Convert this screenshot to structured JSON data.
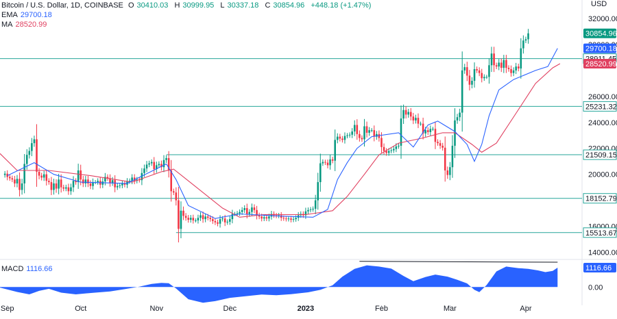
{
  "header": {
    "symbol": "Bitcoin / U.S. Dollar, 1D, COINBASE",
    "ohlc": [
      {
        "key": "O",
        "value": "30410.03"
      },
      {
        "key": "H",
        "value": "30999.95"
      },
      {
        "key": "L",
        "value": "30337.18"
      },
      {
        "key": "C",
        "value": "30854.96"
      }
    ],
    "change": "+448.18 (+1.47%)",
    "ema_label": "EMA",
    "ema_value": "29700.18",
    "ma_label": "MA",
    "ma_value": "28520.99",
    "macd_label": "MACD",
    "macd_value": "1116.66"
  },
  "colors": {
    "up": "#089981",
    "down": "#f23645",
    "ema": "#2962ff",
    "ma": "#e04060",
    "level": "#26a69a",
    "macd_fill": "#2962ff",
    "grid": "#f0f3fa",
    "axis_text": "#131722"
  },
  "chart_data": [
    {
      "type": "candlestick",
      "title": "Bitcoin / U.S. Dollar, 1D, COINBASE",
      "yaxis_unit": "USD",
      "ylim": [
        13500,
        33000
      ],
      "yticks": [
        {
          "value": 32000,
          "label": "32000.00"
        },
        {
          "value": 30000,
          "label": "30000.00"
        },
        {
          "value": 26000,
          "label": "26000.00"
        },
        {
          "value": 24000,
          "label": "24000.00"
        },
        {
          "value": 22000,
          "label": "22000.00"
        },
        {
          "value": 20000,
          "label": "20000.00"
        },
        {
          "value": 16000,
          "label": "16000.00"
        },
        {
          "value": 14000,
          "label": "14000.00"
        }
      ],
      "xticks": [
        {
          "date": "2022-09-01",
          "label": "Sep"
        },
        {
          "date": "2022-10-01",
          "label": "Oct"
        },
        {
          "date": "2022-11-01",
          "label": "Nov"
        },
        {
          "date": "2022-12-01",
          "label": "Dec"
        },
        {
          "date": "2023-01-01",
          "label": "2023"
        },
        {
          "date": "2023-02-01",
          "label": "Feb"
        },
        {
          "date": "2023-03-01",
          "label": "Mar"
        },
        {
          "date": "2023-04-01",
          "label": "Apr"
        }
      ],
      "xrange": [
        "2022-08-29",
        "2023-04-24"
      ],
      "series": [
        {
          "name": "BTCUSD",
          "kind": "candles",
          "first_date": "2022-08-31",
          "interval": "1D",
          "close": [
            20050,
            19800,
            19700,
            19600,
            19300,
            19650,
            18800,
            19300,
            20800,
            21500,
            21800,
            22400,
            22700,
            20200,
            19900,
            19750,
            20000,
            19500,
            19400,
            18800,
            19300,
            18900,
            19600,
            19000,
            18900,
            19000,
            18700,
            19000,
            19500,
            19400,
            20300,
            19600,
            19300,
            19600,
            19300,
            19100,
            19400,
            19400,
            19500,
            19200,
            19450,
            19800,
            19700,
            19350,
            19550,
            19000,
            19100,
            19150,
            19300,
            19200,
            19450,
            19500,
            19750,
            19500,
            19600,
            19550,
            20100,
            20450,
            20750,
            20850,
            20950,
            20400,
            20700,
            20800,
            20550,
            21100,
            21250,
            20300,
            18700,
            18600,
            18000,
            15800,
            17200,
            16800,
            16650,
            16500,
            16650,
            16450,
            16450,
            16650,
            16850,
            16550,
            16750,
            16650,
            16550,
            16400,
            16300,
            16200,
            16550,
            16600,
            16300,
            16350,
            16550,
            16950,
            16950,
            17000,
            17100,
            17250,
            17400,
            16950,
            17100,
            17450,
            17250,
            16850,
            16750,
            16600,
            16700,
            16600,
            16750,
            16950,
            16850,
            16800,
            16850,
            16650,
            16600,
            16550,
            16600,
            16500,
            16550,
            16650,
            16850,
            16950,
            16850,
            17150,
            17250,
            17300,
            17350,
            18000,
            19400,
            20850,
            20950,
            20900,
            20700,
            21150,
            21050,
            22650,
            22900,
            22750,
            22650,
            22950,
            23000,
            23050,
            23300,
            23800,
            23100,
            22800,
            22700,
            23700,
            23200,
            23400,
            23400,
            22900,
            23100,
            22800,
            22100,
            21800,
            21650,
            21800,
            21850,
            21950,
            22150,
            22200,
            24300,
            24950,
            24600,
            24800,
            24450,
            24150,
            24350,
            23900,
            23900,
            23150,
            23400,
            23250,
            23500,
            23500,
            22500,
            22400,
            22200,
            22050,
            20300,
            19950,
            20550,
            22200,
            24150,
            24400,
            24750,
            28000,
            28250,
            27600,
            26900,
            27200,
            28100,
            28000,
            27800,
            27400,
            27500,
            27500,
            28400,
            29300,
            28400,
            28300,
            28600,
            28200,
            28800,
            28200,
            28100,
            27800,
            28000,
            28300,
            28150,
            29700,
            30300,
            30400,
            30855
          ]
        },
        {
          "name": "EMA",
          "value_label": "29700.18",
          "points": [
            {
              "date": "2022-09-01",
              "value": 19900
            },
            {
              "date": "2022-09-12",
              "value": 20900
            },
            {
              "date": "2022-09-20",
              "value": 20000
            },
            {
              "date": "2022-10-01",
              "value": 19400
            },
            {
              "date": "2022-10-20",
              "value": 19300
            },
            {
              "date": "2022-11-05",
              "value": 20800
            },
            {
              "date": "2022-11-09",
              "value": 19600
            },
            {
              "date": "2022-11-14",
              "value": 17600
            },
            {
              "date": "2022-11-25",
              "value": 16600
            },
            {
              "date": "2022-12-05",
              "value": 16950
            },
            {
              "date": "2022-12-20",
              "value": 16800
            },
            {
              "date": "2023-01-04",
              "value": 16700
            },
            {
              "date": "2023-01-10",
              "value": 17300
            },
            {
              "date": "2023-01-14",
              "value": 19600
            },
            {
              "date": "2023-01-18",
              "value": 20900
            },
            {
              "date": "2023-01-22",
              "value": 22000
            },
            {
              "date": "2023-01-28",
              "value": 22900
            },
            {
              "date": "2023-02-08",
              "value": 23200
            },
            {
              "date": "2023-02-14",
              "value": 22100
            },
            {
              "date": "2023-02-20",
              "value": 23800
            },
            {
              "date": "2023-02-24",
              "value": 24100
            },
            {
              "date": "2023-03-03",
              "value": 23300
            },
            {
              "date": "2023-03-08",
              "value": 22300
            },
            {
              "date": "2023-03-11",
              "value": 21000
            },
            {
              "date": "2023-03-14",
              "value": 22300
            },
            {
              "date": "2023-03-17",
              "value": 24500
            },
            {
              "date": "2023-03-21",
              "value": 26500
            },
            {
              "date": "2023-03-27",
              "value": 27300
            },
            {
              "date": "2023-04-05",
              "value": 28000
            },
            {
              "date": "2023-04-10",
              "value": 28300
            },
            {
              "date": "2023-04-14",
              "value": 29700
            }
          ]
        },
        {
          "name": "MA",
          "value_label": "28520.99",
          "points": [
            {
              "date": "2022-08-29",
              "value": 21600
            },
            {
              "date": "2022-09-05",
              "value": 20300
            },
            {
              "date": "2022-09-18",
              "value": 20300
            },
            {
              "date": "2022-10-05",
              "value": 19900
            },
            {
              "date": "2022-10-22",
              "value": 19400
            },
            {
              "date": "2022-11-03",
              "value": 20200
            },
            {
              "date": "2022-11-08",
              "value": 20400
            },
            {
              "date": "2022-11-16",
              "value": 19200
            },
            {
              "date": "2022-11-28",
              "value": 17400
            },
            {
              "date": "2022-12-05",
              "value": 16700
            },
            {
              "date": "2022-12-15",
              "value": 16900
            },
            {
              "date": "2023-01-01",
              "value": 16900
            },
            {
              "date": "2023-01-12",
              "value": 17200
            },
            {
              "date": "2023-01-18",
              "value": 18300
            },
            {
              "date": "2023-01-25",
              "value": 20000
            },
            {
              "date": "2023-01-31",
              "value": 21500
            },
            {
              "date": "2023-02-08",
              "value": 22400
            },
            {
              "date": "2023-02-18",
              "value": 22800
            },
            {
              "date": "2023-02-26",
              "value": 23200
            },
            {
              "date": "2023-03-03",
              "value": 23200
            },
            {
              "date": "2023-03-10",
              "value": 22300
            },
            {
              "date": "2023-03-14",
              "value": 21700
            },
            {
              "date": "2023-03-20",
              "value": 22400
            },
            {
              "date": "2023-03-28",
              "value": 24700
            },
            {
              "date": "2023-04-05",
              "value": 27000
            },
            {
              "date": "2023-04-12",
              "value": 28200
            },
            {
              "date": "2023-04-15",
              "value": 28520
            }
          ]
        }
      ],
      "levels": [
        {
          "value": 28911.45,
          "label": "28911.45",
          "from": "2022-08-29"
        },
        {
          "value": 25231.32,
          "label": "25231.32",
          "from": "2022-08-29"
        },
        {
          "value": 21509.15,
          "label": "21509.15",
          "from": "2022-11-05"
        },
        {
          "value": 18152.79,
          "label": "18152.79",
          "from": "2022-08-29"
        },
        {
          "value": 15513.67,
          "label": "15513.67",
          "from": "2022-11-09"
        }
      ],
      "price_label": {
        "value": 30854.96,
        "label": "30854.96"
      }
    },
    {
      "type": "area",
      "title": "MACD",
      "ylim": [
        -1050,
        1550
      ],
      "yticks": [
        {
          "value": 1116.66,
          "label": "1116.66"
        },
        {
          "value": 0,
          "label": "0.00"
        }
      ],
      "series": [
        {
          "name": "MACD",
          "value_label": "1116.66",
          "points": [
            {
              "date": "2022-08-29",
              "value": -30
            },
            {
              "date": "2022-09-05",
              "value": -280
            },
            {
              "date": "2022-09-10",
              "value": -420
            },
            {
              "date": "2022-09-14",
              "value": -220
            },
            {
              "date": "2022-09-18",
              "value": -100
            },
            {
              "date": "2022-09-23",
              "value": -320
            },
            {
              "date": "2022-09-29",
              "value": -420
            },
            {
              "date": "2022-10-06",
              "value": -330
            },
            {
              "date": "2022-10-13",
              "value": -250
            },
            {
              "date": "2022-10-19",
              "value": -120
            },
            {
              "date": "2022-10-25",
              "value": 20
            },
            {
              "date": "2022-10-30",
              "value": 180
            },
            {
              "date": "2022-11-03",
              "value": 240
            },
            {
              "date": "2022-11-06",
              "value": 220
            },
            {
              "date": "2022-11-09",
              "value": -80
            },
            {
              "date": "2022-11-14",
              "value": -700
            },
            {
              "date": "2022-11-20",
              "value": -900
            },
            {
              "date": "2022-11-25",
              "value": -810
            },
            {
              "date": "2022-12-01",
              "value": -620
            },
            {
              "date": "2022-12-08",
              "value": -520
            },
            {
              "date": "2022-12-14",
              "value": -430
            },
            {
              "date": "2022-12-20",
              "value": -470
            },
            {
              "date": "2022-12-26",
              "value": -410
            },
            {
              "date": "2023-01-02",
              "value": -300
            },
            {
              "date": "2023-01-07",
              "value": -160
            },
            {
              "date": "2023-01-12",
              "value": 100
            },
            {
              "date": "2023-01-16",
              "value": 600
            },
            {
              "date": "2023-01-21",
              "value": 1050
            },
            {
              "date": "2023-01-26",
              "value": 1250
            },
            {
              "date": "2023-01-31",
              "value": 1180
            },
            {
              "date": "2023-02-05",
              "value": 1060
            },
            {
              "date": "2023-02-10",
              "value": 640
            },
            {
              "date": "2023-02-14",
              "value": 340
            },
            {
              "date": "2023-02-19",
              "value": 580
            },
            {
              "date": "2023-02-23",
              "value": 720
            },
            {
              "date": "2023-02-28",
              "value": 600
            },
            {
              "date": "2023-03-04",
              "value": 420
            },
            {
              "date": "2023-03-08",
              "value": 210
            },
            {
              "date": "2023-03-11",
              "value": -160
            },
            {
              "date": "2023-03-13",
              "value": -290
            },
            {
              "date": "2023-03-16",
              "value": 120
            },
            {
              "date": "2023-03-20",
              "value": 900
            },
            {
              "date": "2023-03-24",
              "value": 1180
            },
            {
              "date": "2023-03-29",
              "value": 1090
            },
            {
              "date": "2023-04-02",
              "value": 1050
            },
            {
              "date": "2023-04-06",
              "value": 960
            },
            {
              "date": "2023-04-09",
              "value": 860
            },
            {
              "date": "2023-04-12",
              "value": 930
            },
            {
              "date": "2023-04-14",
              "value": 1117
            }
          ]
        },
        {
          "name": "divergence",
          "kind": "line",
          "points": [
            {
              "date": "2023-01-23",
              "value": 1480
            },
            {
              "date": "2023-04-14",
              "value": 1430
            }
          ]
        }
      ]
    }
  ]
}
